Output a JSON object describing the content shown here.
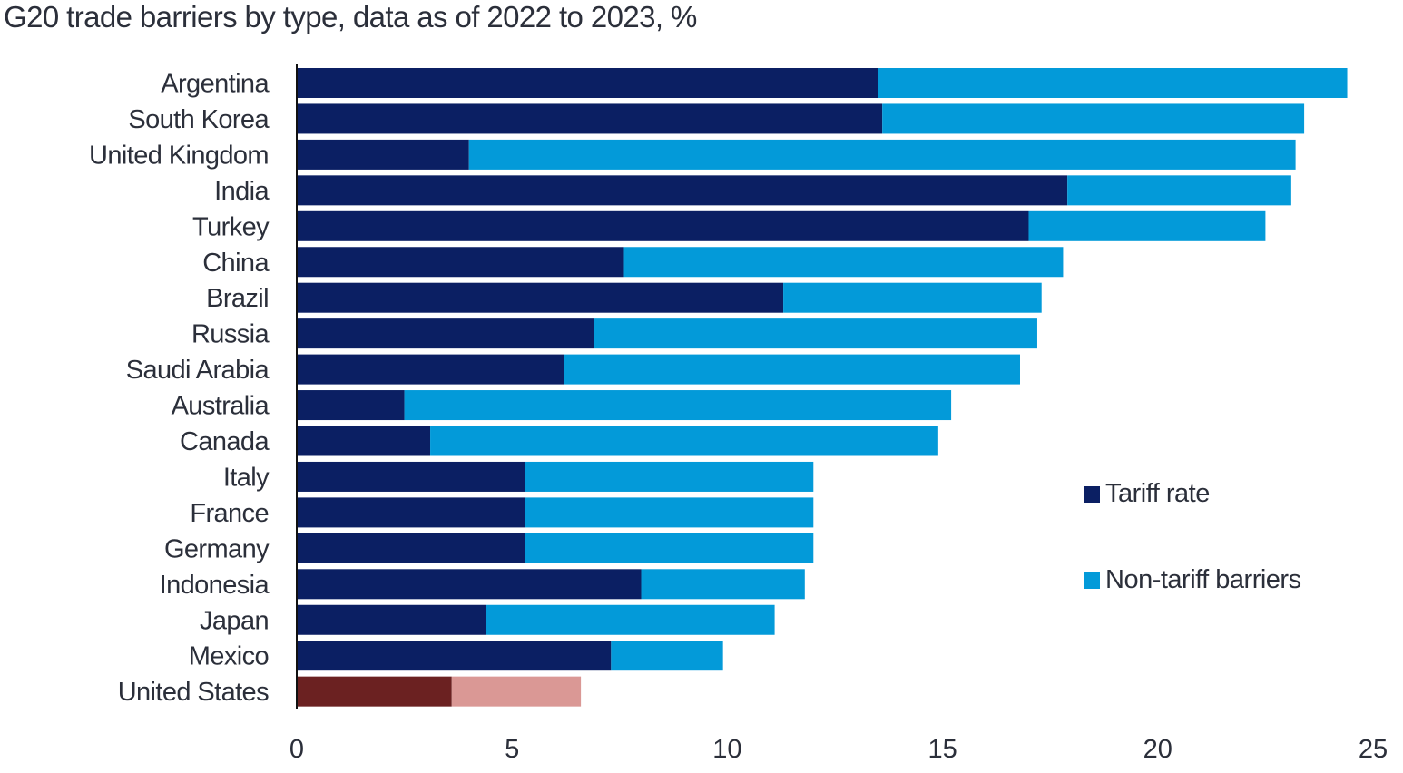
{
  "title": "G20 trade barriers by type, data as of 2022 to 2023, %",
  "colors": {
    "tariff": "#0b1f63",
    "non_tariff": "#039ad9",
    "us_tariff": "#6b2121",
    "us_non_tariff": "#da9895",
    "axis": "#111111"
  },
  "legend": {
    "tariff_label": "Tariff rate",
    "non_tariff_label": "Non-tariff barriers"
  },
  "chart_data": {
    "type": "bar",
    "orientation": "horizontal",
    "stacked": true,
    "title": "G20 trade barriers by type, data as of 2022 to 2023, %",
    "xlabel": "",
    "ylabel": "",
    "xlim": [
      0,
      25
    ],
    "x_ticks": [
      0,
      5,
      10,
      15,
      20,
      25
    ],
    "grid": false,
    "legend_position": "right",
    "categories": [
      "Argentina",
      "South Korea",
      "United Kingdom",
      "India",
      "Turkey",
      "China",
      "Brazil",
      "Russia",
      "Saudi Arabia",
      "Australia",
      "Canada",
      "Italy",
      "France",
      "Germany",
      "Indonesia",
      "Japan",
      "Mexico",
      "United States"
    ],
    "series": [
      {
        "name": "Tariff rate",
        "values": [
          13.5,
          13.6,
          4.0,
          17.9,
          17.0,
          7.6,
          11.3,
          6.9,
          6.2,
          2.5,
          3.1,
          5.3,
          5.3,
          5.3,
          8.0,
          4.4,
          7.3,
          3.6
        ]
      },
      {
        "name": "Non-tariff barriers",
        "values": [
          10.9,
          9.8,
          19.2,
          5.2,
          5.5,
          10.2,
          6.0,
          10.3,
          10.6,
          12.7,
          11.8,
          6.7,
          6.7,
          6.7,
          3.8,
          6.7,
          2.6,
          3.0
        ]
      }
    ],
    "highlight_category": "United States"
  }
}
